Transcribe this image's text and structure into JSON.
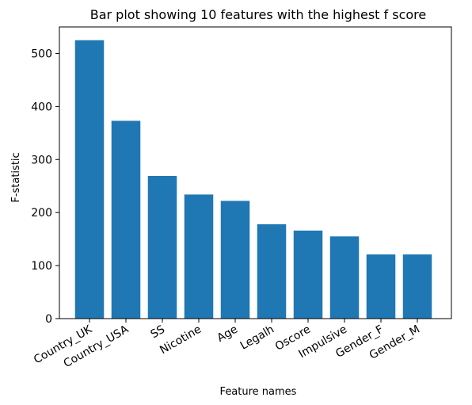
{
  "chart_data": {
    "type": "bar",
    "title": "Bar plot showing 10 features with the highest f score",
    "xlabel": "Feature names",
    "ylabel": "F-statistic",
    "categories": [
      "Country_UK",
      "Country_USA",
      "SS",
      "Nicotine",
      "Age",
      "Legalh",
      "Oscore",
      "Impulsive",
      "Gender_F",
      "Gender_M"
    ],
    "values": [
      525,
      373,
      269,
      234,
      222,
      178,
      166,
      155,
      121,
      121
    ],
    "ylim": [
      0,
      550
    ],
    "yticks": [
      0,
      100,
      200,
      300,
      400,
      500
    ],
    "grid": false,
    "bar_color": "#1f77b4"
  }
}
